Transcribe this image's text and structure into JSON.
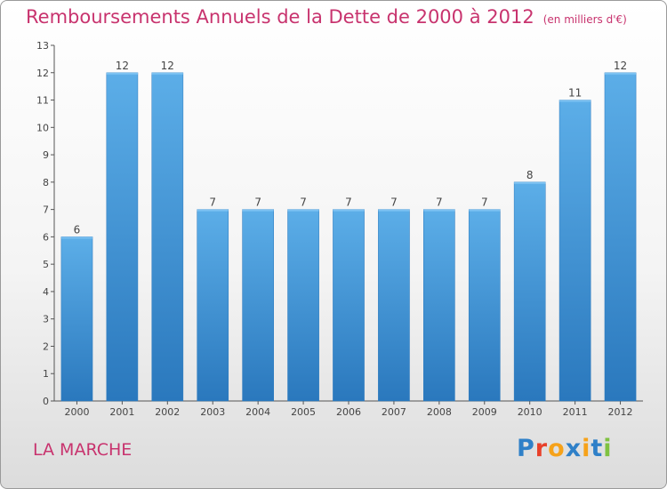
{
  "title": "Remboursements Annuels de la Dette de 2000 à 2012",
  "unit_note": "(en milliers d'€)",
  "commune": "LA MARCHE",
  "logo": {
    "text": "Proxiti",
    "letter_colors": [
      "#2f80c8",
      "#e8402a",
      "#f6a21a",
      "#2f80c8",
      "#f6a21a",
      "#2f80c8",
      "#7fc241"
    ]
  },
  "colors": {
    "title": "#c8336e",
    "bar": "#3f94d6",
    "bar_light": "#5caee8",
    "bar_dark": "#2a78bd"
  },
  "chart_data": {
    "type": "bar",
    "categories": [
      "2000",
      "2001",
      "2002",
      "2003",
      "2004",
      "2005",
      "2006",
      "2007",
      "2008",
      "2009",
      "2010",
      "2011",
      "2012"
    ],
    "values": [
      6,
      12,
      12,
      7,
      7,
      7,
      7,
      7,
      7,
      7,
      8,
      11,
      12
    ],
    "y_ticks": [
      0,
      1,
      2,
      3,
      4,
      5,
      6,
      7,
      8,
      9,
      10,
      11,
      12,
      13
    ],
    "ylim": [
      0,
      13
    ],
    "grid": false,
    "xlabel": "",
    "ylabel": ""
  }
}
